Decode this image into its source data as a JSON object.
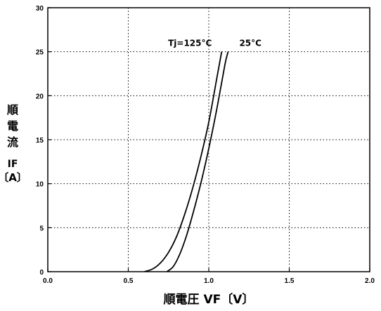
{
  "chart_data": {
    "type": "line",
    "xlabel": "順電圧 VF〔V〕",
    "ylabel_chars": [
      "順",
      "電",
      "流",
      "IF",
      "〔A〕"
    ],
    "xlim": [
      0.0,
      2.0
    ],
    "ylim": [
      0,
      30
    ],
    "x_ticks": [
      "0.0",
      "0.5",
      "1.0",
      "1.5",
      "2.0"
    ],
    "x_tick_values": [
      0.0,
      0.5,
      1.0,
      1.5,
      2.0
    ],
    "y_ticks": [
      "0",
      "5",
      "10",
      "15",
      "20",
      "25",
      "30"
    ],
    "y_tick_values": [
      0,
      5,
      10,
      15,
      20,
      25,
      30
    ],
    "grid": true,
    "series": [
      {
        "name": "Tj=125°C",
        "points": [
          [
            0.6,
            0.0
          ],
          [
            0.65,
            0.3
          ],
          [
            0.7,
            1.0
          ],
          [
            0.75,
            2.2
          ],
          [
            0.8,
            4.0
          ],
          [
            0.85,
            6.5
          ],
          [
            0.9,
            9.5
          ],
          [
            0.95,
            13.0
          ],
          [
            1.0,
            17.0
          ],
          [
            1.05,
            22.0
          ],
          [
            1.08,
            25.0
          ]
        ]
      },
      {
        "name": "25°C",
        "points": [
          [
            0.74,
            0.0
          ],
          [
            0.78,
            0.6
          ],
          [
            0.82,
            2.0
          ],
          [
            0.86,
            4.0
          ],
          [
            0.9,
            6.5
          ],
          [
            0.95,
            10.0
          ],
          [
            1.0,
            14.0
          ],
          [
            1.05,
            18.5
          ],
          [
            1.1,
            23.5
          ],
          [
            1.12,
            25.0
          ]
        ]
      }
    ],
    "annotations": [
      {
        "text": "Tj=125°C",
        "x": 1.08,
        "y": 25.0
      },
      {
        "text": "25°C",
        "x": 1.18,
        "y": 25.0
      }
    ]
  }
}
